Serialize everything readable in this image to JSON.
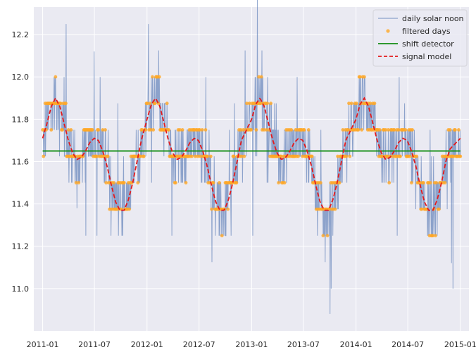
{
  "chart_data": {
    "type": "line",
    "title": "",
    "xlabel": "",
    "ylabel": "",
    "x_range": [
      "2010-12-01",
      "2015-01-31"
    ],
    "xlim": [
      -31,
      1491
    ],
    "ylim": [
      10.8,
      12.33
    ],
    "x_ticks": [
      {
        "label": "2011-01",
        "x": 0
      },
      {
        "label": "2011-07",
        "x": 181
      },
      {
        "label": "2012-01",
        "x": 365
      },
      {
        "label": "2012-07",
        "x": 547
      },
      {
        "label": "2013-01",
        "x": 731
      },
      {
        "label": "2013-07",
        "x": 912
      },
      {
        "label": "2014-01",
        "x": 1096
      },
      {
        "label": "2014-07",
        "x": 1277
      },
      {
        "label": "2015-01",
        "x": 1461
      }
    ],
    "y_ticks": [
      11.0,
      11.2,
      11.4,
      11.6,
      11.8,
      12.0,
      12.2
    ],
    "grid": true,
    "legend_position": "top-right",
    "series": [
      {
        "name": "daily solar noon",
        "style": "line",
        "color": "#4c72b0"
      },
      {
        "name": "filtered days",
        "style": "markers",
        "color": "#ffa726"
      },
      {
        "name": "shift detector",
        "style": "line",
        "color": "#138d14",
        "values": [
          11.65,
          11.65
        ]
      },
      {
        "name": "signal model",
        "style": "dashed",
        "color": "#e41a1c"
      }
    ],
    "model_points": [
      [
        0,
        11.71
      ],
      [
        15,
        11.78
      ],
      [
        30,
        11.86
      ],
      [
        45,
        11.9
      ],
      [
        60,
        11.86
      ],
      [
        75,
        11.78
      ],
      [
        90,
        11.7
      ],
      [
        105,
        11.64
      ],
      [
        120,
        11.61
      ],
      [
        135,
        11.62
      ],
      [
        150,
        11.65
      ],
      [
        165,
        11.69
      ],
      [
        180,
        11.71
      ],
      [
        195,
        11.7
      ],
      [
        210,
        11.65
      ],
      [
        225,
        11.58
      ],
      [
        240,
        11.49
      ],
      [
        255,
        11.41
      ],
      [
        270,
        11.37
      ],
      [
        285,
        11.37
      ],
      [
        300,
        11.42
      ],
      [
        315,
        11.5
      ],
      [
        330,
        11.6
      ],
      [
        345,
        11.7
      ],
      [
        365,
        11.8
      ],
      [
        380,
        11.87
      ],
      [
        395,
        11.9
      ],
      [
        410,
        11.86
      ],
      [
        425,
        11.78
      ],
      [
        440,
        11.7
      ],
      [
        455,
        11.64
      ],
      [
        470,
        11.61
      ],
      [
        485,
        11.62
      ],
      [
        500,
        11.65
      ],
      [
        515,
        11.69
      ],
      [
        530,
        11.71
      ],
      [
        545,
        11.7
      ],
      [
        560,
        11.65
      ],
      [
        575,
        11.58
      ],
      [
        590,
        11.49
      ],
      [
        605,
        11.41
      ],
      [
        620,
        11.37
      ],
      [
        635,
        11.37
      ],
      [
        650,
        11.42
      ],
      [
        665,
        11.5
      ],
      [
        680,
        11.6
      ],
      [
        695,
        11.7
      ],
      [
        731,
        11.8
      ],
      [
        745,
        11.87
      ],
      [
        760,
        11.9
      ],
      [
        775,
        11.86
      ],
      [
        790,
        11.78
      ],
      [
        805,
        11.7
      ],
      [
        820,
        11.64
      ],
      [
        835,
        11.61
      ],
      [
        850,
        11.62
      ],
      [
        865,
        11.65
      ],
      [
        880,
        11.69
      ],
      [
        895,
        11.71
      ],
      [
        910,
        11.7
      ],
      [
        925,
        11.65
      ],
      [
        940,
        11.58
      ],
      [
        955,
        11.49
      ],
      [
        970,
        11.41
      ],
      [
        985,
        11.37
      ],
      [
        1000,
        11.37
      ],
      [
        1015,
        11.42
      ],
      [
        1030,
        11.5
      ],
      [
        1045,
        11.6
      ],
      [
        1060,
        11.7
      ],
      [
        1096,
        11.8
      ],
      [
        1110,
        11.87
      ],
      [
        1125,
        11.9
      ],
      [
        1140,
        11.86
      ],
      [
        1155,
        11.78
      ],
      [
        1170,
        11.7
      ],
      [
        1185,
        11.64
      ],
      [
        1200,
        11.61
      ],
      [
        1215,
        11.62
      ],
      [
        1230,
        11.65
      ],
      [
        1245,
        11.69
      ],
      [
        1260,
        11.71
      ],
      [
        1275,
        11.7
      ],
      [
        1290,
        11.65
      ],
      [
        1305,
        11.58
      ],
      [
        1320,
        11.49
      ],
      [
        1335,
        11.41
      ],
      [
        1350,
        11.37
      ],
      [
        1365,
        11.37
      ],
      [
        1380,
        11.42
      ],
      [
        1395,
        11.5
      ],
      [
        1410,
        11.6
      ],
      [
        1425,
        11.66
      ],
      [
        1461,
        11.71
      ]
    ],
    "noise": {
      "spikes": [
        [
          82,
          12.25
        ],
        [
          370,
          12.25
        ],
        [
          1005,
          10.88
        ],
        [
          1435,
          11.0
        ],
        [
          1430,
          11.12
        ],
        [
          120,
          11.38
        ],
        [
          190,
          11.25
        ],
        [
          180,
          12.12
        ],
        [
          735,
          11.25
        ],
        [
          620,
          11.25
        ],
        [
          1240,
          11.25
        ],
        [
          1380,
          11.25
        ]
      ]
    }
  }
}
